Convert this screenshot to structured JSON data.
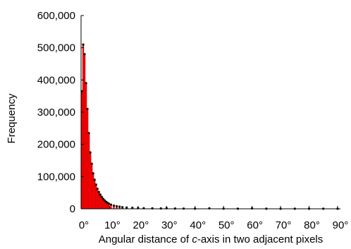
{
  "chart_data": {
    "type": "bar",
    "title": "",
    "xlabel_parts": [
      "Angular distance of ",
      "c",
      "-axis in two adjacent pixels"
    ],
    "ylabel": "Frequency",
    "xlim": [
      0,
      91
    ],
    "ylim": [
      0,
      600000
    ],
    "x_ticks": [
      0,
      10,
      20,
      30,
      40,
      50,
      60,
      70,
      80,
      90
    ],
    "x_tick_labels": [
      "0°",
      "10°",
      "20°",
      "30°",
      "40°",
      "50°",
      "60°",
      "70°",
      "80°",
      "90°"
    ],
    "y_ticks": [
      0,
      100000,
      200000,
      300000,
      400000,
      500000,
      600000
    ],
    "y_tick_labels": [
      "0",
      "100,000",
      "200,000",
      "300,000",
      "400,000",
      "500,000",
      "600,000"
    ],
    "grid": false,
    "bar_color": "#ff0000",
    "bar_width_deg": 0.5,
    "x": [
      0.25,
      0.75,
      1.25,
      1.75,
      2.25,
      2.75,
      3.25,
      3.75,
      4.25,
      4.75,
      5.25,
      5.75,
      6.25,
      6.75,
      7.25,
      7.75,
      8.25,
      8.75,
      9.25,
      9.75,
      10.5,
      11.5,
      12.5,
      13.5,
      14.5,
      16,
      18,
      20,
      22,
      25,
      28,
      30,
      33,
      36,
      40,
      45,
      50,
      55,
      60,
      65,
      70,
      75,
      80,
      85,
      90
    ],
    "values": [
      365000,
      510000,
      480000,
      390000,
      310000,
      235000,
      175000,
      140000,
      110000,
      90000,
      75000,
      62000,
      52000,
      44000,
      37000,
      31000,
      26000,
      22000,
      19000,
      16000,
      13000,
      10000,
      8000,
      6500,
      5000,
      3800,
      3000,
      2300,
      1800,
      1400,
      1100,
      2000,
      800,
      700,
      600,
      1500,
      500,
      400,
      1400,
      350,
      300,
      300,
      250,
      250,
      200
    ]
  }
}
